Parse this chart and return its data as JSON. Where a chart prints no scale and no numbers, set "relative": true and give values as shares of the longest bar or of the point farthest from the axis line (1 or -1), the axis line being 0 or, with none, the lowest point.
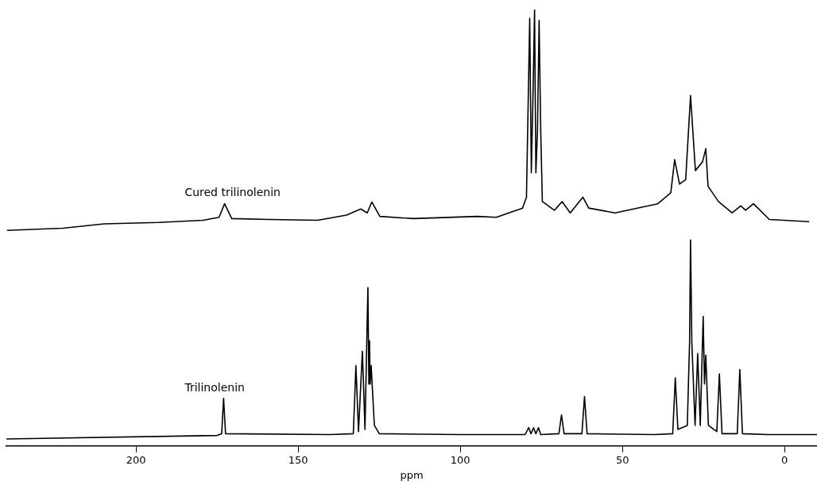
{
  "chart_data": {
    "type": "line",
    "relative": true,
    "xlim": [
      240,
      -10
    ],
    "xticks": [
      200,
      150,
      100,
      50,
      0
    ],
    "xlabel": "ppm",
    "tick_labels": "x",
    "grid": false,
    "legend": false,
    "marker": "none",
    "line_style": "solid",
    "series": [
      {
        "name": "Cured trilinolenin",
        "color": "#000000",
        "x": [
          239.8,
          222.6,
          209.8,
          193.1,
          179.3,
          174.4,
          172.7,
          170.5,
          158.7,
          144,
          135.1,
          130.7,
          128.7,
          127.3,
          124.8,
          114.5,
          94.8,
          88.9,
          80.8,
          79.6,
          78.6,
          78.1,
          77.6,
          77.1,
          76.7,
          76.2,
          75.7,
          75.2,
          74.7,
          71,
          68.6,
          66.1,
          62.2,
          60.4,
          52.3,
          39.1,
          35.1,
          33.9,
          32.4,
          30.5,
          29,
          27.5,
          25.3,
          24.3,
          23.6,
          20.4,
          16.2,
          13.5,
          12,
          9.6,
          4.7,
          -7.6
        ],
        "values": [
          0.494,
          0.499,
          0.509,
          0.512,
          0.517,
          0.524,
          0.555,
          0.521,
          0.519,
          0.517,
          0.529,
          0.543,
          0.534,
          0.559,
          0.526,
          0.521,
          0.526,
          0.524,
          0.545,
          0.57,
          0.98,
          0.626,
          0.798,
          1,
          0.626,
          0.722,
          0.975,
          0.722,
          0.56,
          0.54,
          0.56,
          0.534,
          0.57,
          0.545,
          0.534,
          0.555,
          0.58,
          0.656,
          0.6,
          0.61,
          0.803,
          0.631,
          0.651,
          0.681,
          0.595,
          0.56,
          0.534,
          0.55,
          0.54,
          0.555,
          0.519,
          0.514
        ]
      },
      {
        "name": "Trilinolenin",
        "color": "#000000",
        "x": [
          240,
          175,
          173.6,
          173,
          172.4,
          140,
          133,
          132.2,
          131.4,
          130.2,
          129.4,
          128.5,
          128.2,
          128,
          127.8,
          127.5,
          126.5,
          125,
          100,
          80,
          78.9,
          78.2,
          77.4,
          76.7,
          75.9,
          75.2,
          69.6,
          68.8,
          68,
          62.5,
          61.7,
          60.9,
          40,
          34.5,
          33.7,
          32.9,
          30,
          29.3,
          29,
          28.6,
          27.6,
          26.8,
          26,
          25.1,
          24.7,
          24.3,
          23.5,
          20.9,
          20.1,
          19.3,
          14.6,
          13.8,
          13,
          5,
          -10
        ],
        "values": [
          0.016,
          0.024,
          0.028,
          0.109,
          0.028,
          0.026,
          0.028,
          0.184,
          0.033,
          0.217,
          0.038,
          0.363,
          0.142,
          0.241,
          0.142,
          0.184,
          0.047,
          0.028,
          0.026,
          0.026,
          0.042,
          0.028,
          0.042,
          0.028,
          0.042,
          0.026,
          0.028,
          0.071,
          0.028,
          0.028,
          0.113,
          0.028,
          0.026,
          0.028,
          0.156,
          0.038,
          0.047,
          0.236,
          0.472,
          0.236,
          0.047,
          0.212,
          0.047,
          0.297,
          0.142,
          0.208,
          0.047,
          0.033,
          0.165,
          0.028,
          0.028,
          0.175,
          0.028,
          0.026,
          0.026
        ]
      }
    ]
  }
}
